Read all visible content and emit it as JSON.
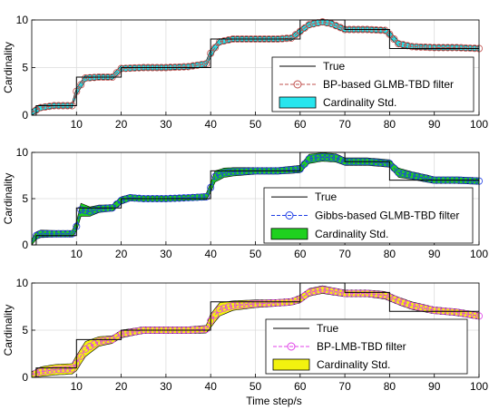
{
  "figure": {
    "xlabel": "Time step/s"
  },
  "chart_data": [
    {
      "type": "line",
      "ylabel": "Cardinality",
      "xlim": [
        0,
        100
      ],
      "ylim": [
        0,
        10
      ],
      "xticks": [
        10,
        20,
        30,
        40,
        50,
        60,
        70,
        80,
        90,
        100
      ],
      "yticks": [
        0,
        5,
        10
      ],
      "grid": true,
      "legend_placement": "lower-right",
      "true_x": [
        0,
        1,
        1,
        10,
        10,
        20,
        20,
        40,
        40,
        60,
        60,
        70,
        70,
        80,
        80,
        100
      ],
      "true_y": [
        0,
        0,
        1,
        1,
        4,
        4,
        5,
        5,
        8,
        8,
        10,
        10,
        9,
        9,
        7,
        7
      ],
      "est_x": [
        0,
        2,
        5,
        9,
        10,
        12,
        15,
        18,
        20,
        25,
        30,
        35,
        39,
        40,
        42,
        45,
        50,
        55,
        58,
        60,
        62,
        65,
        67,
        70,
        75,
        79,
        80,
        82,
        85,
        90,
        95,
        100
      ],
      "est_y": [
        0.3,
        0.8,
        1.0,
        1.0,
        2.5,
        3.9,
        4.0,
        4.0,
        4.9,
        5.0,
        5.0,
        5.1,
        5.4,
        6.5,
        7.7,
        8.0,
        8.0,
        8.0,
        8.1,
        8.8,
        9.5,
        9.8,
        9.6,
        9.0,
        9.0,
        8.9,
        8.5,
        7.5,
        7.2,
        7.1,
        7.1,
        7.0
      ],
      "std": [
        0.3,
        0.3,
        0.25,
        0.25,
        0.35,
        0.3,
        0.25,
        0.25,
        0.3,
        0.25,
        0.25,
        0.25,
        0.3,
        0.4,
        0.3,
        0.25,
        0.25,
        0.25,
        0.25,
        0.3,
        0.3,
        0.3,
        0.3,
        0.25,
        0.25,
        0.25,
        0.3,
        0.3,
        0.25,
        0.25,
        0.25,
        0.25
      ],
      "marker_points": 100,
      "colors": {
        "true": "#000000",
        "est": "#c0504d",
        "std": "#27e5ee"
      },
      "legend": [
        "True",
        "BP-based GLMB-TBD filter",
        "Cardinality Std."
      ]
    },
    {
      "type": "line",
      "ylabel": "Cardinality",
      "xlim": [
        0,
        100
      ],
      "ylim": [
        0,
        10
      ],
      "xticks": [
        10,
        20,
        30,
        40,
        50,
        60,
        70,
        80,
        90,
        100
      ],
      "yticks": [
        0,
        5,
        10
      ],
      "grid": true,
      "legend_placement": "lower-right",
      "true_x": [
        0,
        1,
        1,
        10,
        10,
        20,
        20,
        40,
        40,
        60,
        60,
        70,
        70,
        80,
        80,
        100
      ],
      "true_y": [
        0,
        0,
        1,
        1,
        4,
        4,
        5,
        5,
        8,
        8,
        10,
        10,
        9,
        9,
        7,
        7
      ],
      "est_x": [
        0,
        1,
        2,
        5,
        9,
        10,
        11,
        13,
        15,
        18,
        20,
        22,
        25,
        30,
        35,
        39,
        40,
        41,
        43,
        45,
        50,
        55,
        60,
        62,
        65,
        68,
        70,
        75,
        80,
        82,
        85,
        88,
        90,
        95,
        100
      ],
      "est_y": [
        0.3,
        1.0,
        1.2,
        1.2,
        1.2,
        2.0,
        3.8,
        3.6,
        3.9,
        4.0,
        4.8,
        5.1,
        5.0,
        5.0,
        5.1,
        5.2,
        6.2,
        7.4,
        7.8,
        7.9,
        8.0,
        8.0,
        8.2,
        9.3,
        9.5,
        9.4,
        9.0,
        9.0,
        8.8,
        7.8,
        7.5,
        7.2,
        7.0,
        7.0,
        6.9
      ],
      "std": [
        0.3,
        0.4,
        0.4,
        0.35,
        0.35,
        0.5,
        0.7,
        0.5,
        0.4,
        0.35,
        0.4,
        0.35,
        0.3,
        0.3,
        0.3,
        0.35,
        0.5,
        0.6,
        0.5,
        0.45,
        0.35,
        0.35,
        0.4,
        0.5,
        0.45,
        0.45,
        0.4,
        0.4,
        0.4,
        0.5,
        0.4,
        0.4,
        0.35,
        0.35,
        0.35
      ],
      "marker_points": 100,
      "colors": {
        "true": "#000000",
        "est": "#1f3ee5",
        "std": "#1fd11f"
      },
      "legend": [
        "True",
        "Gibbs-based GLMB-TBD filter",
        "Cardinality Std."
      ]
    },
    {
      "type": "line",
      "ylabel": "Cardinality",
      "xlim": [
        0,
        100
      ],
      "ylim": [
        0,
        10
      ],
      "xticks": [
        10,
        20,
        30,
        40,
        50,
        60,
        70,
        80,
        90,
        100
      ],
      "yticks": [
        0,
        5,
        10
      ],
      "grid": true,
      "legend_placement": "lower-right",
      "true_x": [
        0,
        1,
        1,
        10,
        10,
        20,
        20,
        40,
        40,
        60,
        60,
        70,
        70,
        80,
        80,
        100
      ],
      "true_y": [
        0,
        0,
        1,
        1,
        4,
        4,
        5,
        5,
        8,
        8,
        10,
        10,
        9,
        9,
        7,
        7
      ],
      "est_x": [
        0,
        2,
        5,
        9,
        10,
        12,
        15,
        18,
        20,
        25,
        30,
        35,
        39,
        40,
        42,
        45,
        50,
        55,
        58,
        60,
        62,
        65,
        70,
        75,
        79,
        80,
        82,
        85,
        90,
        95,
        100
      ],
      "est_y": [
        0.3,
        0.6,
        0.8,
        0.9,
        1.5,
        3.0,
        3.8,
        4.0,
        4.6,
        5.0,
        5.0,
        5.0,
        5.1,
        6.0,
        7.2,
        7.6,
        7.8,
        7.9,
        8.0,
        8.3,
        9.0,
        9.3,
        8.9,
        8.9,
        8.7,
        8.5,
        8.1,
        7.6,
        7.1,
        6.9,
        6.5
      ],
      "std": [
        0.3,
        0.5,
        0.55,
        0.55,
        0.8,
        0.8,
        0.5,
        0.4,
        0.4,
        0.35,
        0.35,
        0.35,
        0.4,
        0.7,
        0.7,
        0.5,
        0.4,
        0.35,
        0.35,
        0.4,
        0.4,
        0.4,
        0.35,
        0.35,
        0.4,
        0.4,
        0.4,
        0.4,
        0.35,
        0.35,
        0.35
      ],
      "marker_points": 100,
      "colors": {
        "true": "#000000",
        "est": "#e040e8",
        "std": "#f2f20f"
      },
      "legend": [
        "True",
        "BP-LMB-TBD filter",
        "Cardinality Std."
      ]
    }
  ]
}
